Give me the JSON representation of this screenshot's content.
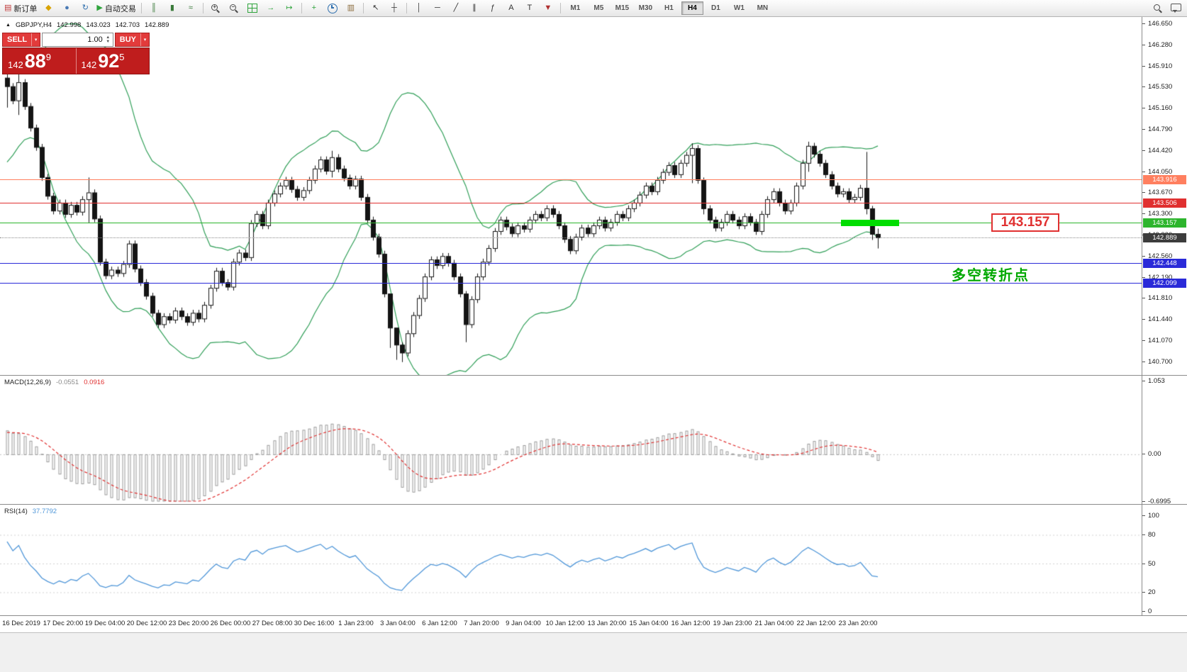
{
  "toolbar": {
    "timeframes": [
      "M1",
      "M5",
      "M15",
      "M30",
      "H1",
      "H4",
      "D1",
      "W1",
      "MN"
    ],
    "active_timeframe": "H4",
    "icons": [
      {
        "name": "new-order-button",
        "glyph": "▤",
        "color": "#c03a3a",
        "label": "新订单"
      },
      {
        "name": "charts-grid-icon",
        "glyph": "◆",
        "color": "#d9a300"
      },
      {
        "name": "profiles-icon",
        "glyph": "●",
        "color": "#4a7ab5"
      },
      {
        "name": "refresh-icon",
        "glyph": "↻",
        "color": "#2f6fae"
      },
      {
        "name": "autotrading-button",
        "glyph": "▶",
        "color": "#2fa43c",
        "label": "自动交易"
      },
      {
        "sep": true
      },
      {
        "name": "bar-chart-icon",
        "glyph": "║",
        "color": "#3a7a3a"
      },
      {
        "name": "candlestick-chart-icon",
        "glyph": "▮",
        "color": "#3a7a3a"
      },
      {
        "name": "line-chart-icon",
        "glyph": "≈",
        "color": "#3a7a3a"
      },
      {
        "sep": true
      },
      {
        "name": "zoom-in-icon",
        "css": "mag-plus"
      },
      {
        "name": "zoom-out-icon",
        "css": "mag-minus"
      },
      {
        "name": "tile-windows-icon",
        "css": "grid"
      },
      {
        "name": "auto-scroll-icon",
        "glyph": "→",
        "color": "#2fa43c"
      },
      {
        "name": "chart-shift-icon",
        "glyph": "↦",
        "color": "#2fa43c"
      },
      {
        "sep": true
      },
      {
        "name": "indicators-button",
        "glyph": "+",
        "color": "#2fa43c"
      },
      {
        "name": "periods-button",
        "css": "clock"
      },
      {
        "name": "templates-button",
        "glyph": "▥",
        "color": "#8a6a3a"
      },
      {
        "sep": true
      },
      {
        "name": "cursor-icon",
        "glyph": "↖",
        "color": "#333333"
      },
      {
        "name": "crosshair-icon",
        "glyph": "┼",
        "color": "#333333"
      },
      {
        "sep": true
      },
      {
        "name": "vertical-line-icon",
        "glyph": "│",
        "color": "#333333"
      },
      {
        "name": "horizontal-line-icon",
        "glyph": "─",
        "color": "#333333"
      },
      {
        "name": "trendline-icon",
        "glyph": "╱",
        "color": "#333333"
      },
      {
        "name": "channel-icon",
        "glyph": "∥",
        "color": "#333333"
      },
      {
        "name": "fibonacci-icon",
        "glyph": "ƒ",
        "color": "#333333"
      },
      {
        "name": "text-icon",
        "glyph": "A",
        "color": "#333333"
      },
      {
        "name": "label-icon",
        "glyph": "T",
        "color": "#333333"
      },
      {
        "name": "arrows-list-icon",
        "glyph": "▼",
        "color": "#b03030"
      },
      {
        "sep": true
      }
    ]
  },
  "trade_panel": {
    "sell_label": "SELL",
    "buy_label": "BUY",
    "volume": "1.00",
    "panel_color": "#bf1d1d",
    "button_color": "#e23b3b",
    "sell": {
      "base": "142",
      "big": "88",
      "sup": "9"
    },
    "buy": {
      "base": "142",
      "big": "92",
      "sup": "5"
    }
  },
  "chart": {
    "tick_arrow": "▲",
    "symbol_period": "GBPJPY,H4",
    "open": "142.998",
    "high": "143.023",
    "low": "142.703",
    "close": "142.889",
    "price_axis": [
      "146.650",
      "146.280",
      "145.910",
      "145.530",
      "145.160",
      "144.790",
      "144.420",
      "144.050",
      "143.670",
      "143.300",
      "142.930",
      "142.560",
      "142.190",
      "141.810",
      "141.440",
      "141.070",
      "140.700"
    ],
    "time_axis": [
      "16 Dec 2019",
      "17 Dec 20:00",
      "19 Dec 04:00",
      "20 Dec 12:00",
      "23 Dec 20:00",
      "26 Dec 00:00",
      "27 Dec 08:00",
      "30 Dec 16:00",
      "1 Jan 23:00",
      "3 Jan 04:00",
      "6 Jan 12:00",
      "7 Jan 20:00",
      "9 Jan 04:00",
      "10 Jan 12:00",
      "13 Jan 20:00",
      "15 Jan 04:00",
      "16 Jan 12:00",
      "19 Jan 23:00",
      "21 Jan 04:00",
      "22 Jan 12:00",
      "23 Jan 20:00"
    ],
    "hlines": [
      {
        "price": 143.916,
        "label": "143.916",
        "color": "#ff7f5f"
      },
      {
        "price": 143.506,
        "label": "143.506",
        "color": "#e03030"
      },
      {
        "price": 143.157,
        "label": "143.157",
        "color": "#2db52d"
      },
      {
        "price": 142.448,
        "label": "142.448",
        "color": "#2a2ad8"
      },
      {
        "price": 142.099,
        "label": "142.099",
        "color": "#2a2ad8"
      }
    ],
    "bid": {
      "price": 142.889,
      "label": "142.889",
      "tag_color": "#3c3c3c"
    },
    "annotation_price": "143.157",
    "annotation_box_color": "#e03030",
    "annotation_text": "多空转折点",
    "annotation_text_color": "#00a800",
    "highlight": {
      "price": 143.157,
      "color": "#00dd00"
    }
  },
  "chart_data": {
    "type": "candlestick",
    "title": "GBPJPY,H4",
    "ylim": [
      140.7,
      146.65
    ],
    "warmup_closes": [
      144.2,
      144.35,
      144.3,
      144.5,
      144.65,
      144.6,
      144.8,
      144.95,
      145.1,
      145.0,
      145.2,
      145.35,
      145.3,
      145.5,
      145.6,
      145.5,
      145.65,
      145.72,
      145.6,
      145.7
    ],
    "closes": [
      145.55,
      145.3,
      145.62,
      145.2,
      144.82,
      144.48,
      143.95,
      143.62,
      143.36,
      143.5,
      143.3,
      143.46,
      143.34,
      143.56,
      143.68,
      143.22,
      142.46,
      142.22,
      142.32,
      142.26,
      142.42,
      142.78,
      142.34,
      142.1,
      141.86,
      141.56,
      141.36,
      141.5,
      141.44,
      141.6,
      141.5,
      141.4,
      141.56,
      141.46,
      141.7,
      142.0,
      142.3,
      142.1,
      142.02,
      142.46,
      142.62,
      142.54,
      143.14,
      143.3,
      143.1,
      143.5,
      143.66,
      143.8,
      143.9,
      143.74,
      143.6,
      143.72,
      143.9,
      144.1,
      144.26,
      144.06,
      144.3,
      144.1,
      143.94,
      143.8,
      143.92,
      143.6,
      143.2,
      142.9,
      142.6,
      141.9,
      141.3,
      141.0,
      140.86,
      141.2,
      141.52,
      141.82,
      142.2,
      142.5,
      142.4,
      142.56,
      142.44,
      142.2,
      141.9,
      141.36,
      141.8,
      142.2,
      142.46,
      142.7,
      143.0,
      143.2,
      143.08,
      142.96,
      143.1,
      143.04,
      143.2,
      143.3,
      143.24,
      143.4,
      143.3,
      143.1,
      142.86,
      142.66,
      142.9,
      143.06,
      142.96,
      143.1,
      143.2,
      143.06,
      143.16,
      143.3,
      143.24,
      143.4,
      143.5,
      143.64,
      143.8,
      143.7,
      143.9,
      144.04,
      144.16,
      144.0,
      144.2,
      144.34,
      144.46,
      143.9,
      143.4,
      143.2,
      143.06,
      143.16,
      143.3,
      143.2,
      143.1,
      143.26,
      143.16,
      143.0,
      143.3,
      143.56,
      143.7,
      143.5,
      143.36,
      143.5,
      143.8,
      144.2,
      144.5,
      144.36,
      144.2,
      144.0,
      143.8,
      143.66,
      143.7,
      143.56,
      143.6,
      143.76,
      143.4,
      142.95,
      142.889
    ],
    "default_wick": 0.06,
    "wick_overrides": {
      "0": [
        145.92,
        145.18
      ],
      "2": [
        145.8,
        145.05
      ],
      "14": [
        143.95,
        143.15
      ],
      "56": [
        144.42,
        143.95
      ],
      "66": [
        141.55,
        140.95
      ],
      "67": [
        141.15,
        140.74
      ],
      "68": [
        141.05,
        140.7
      ],
      "79": [
        141.95,
        141.05
      ],
      "118": [
        144.55,
        143.85
      ],
      "120": [
        143.95,
        143.3
      ],
      "138": [
        144.58,
        144.05
      ],
      "148": [
        144.4,
        143.3
      ],
      "149": [
        143.45,
        142.85
      ],
      "150": [
        143.05,
        142.7
      ]
    },
    "colors": {
      "up": "#ffffff",
      "down": "#141414",
      "outline": "#141414"
    },
    "bollinger": {
      "period": 20,
      "deviation": 2,
      "color": "#2f9e57"
    },
    "macd": {
      "name": "MACD(12,26,9)",
      "value": "-0.0551",
      "signal": "0.0916",
      "scale": [
        "1.053",
        "0.00",
        "-0.6995"
      ],
      "hist_color": "#9a9a9a",
      "signal_color": "#e03030"
    },
    "rsi": {
      "name": "RSI(14)",
      "value": "37.7792",
      "scale": [
        "100",
        "80",
        "50",
        "20",
        "0"
      ],
      "color": "#4f96d8",
      "levels": [
        80,
        50,
        20
      ]
    }
  }
}
